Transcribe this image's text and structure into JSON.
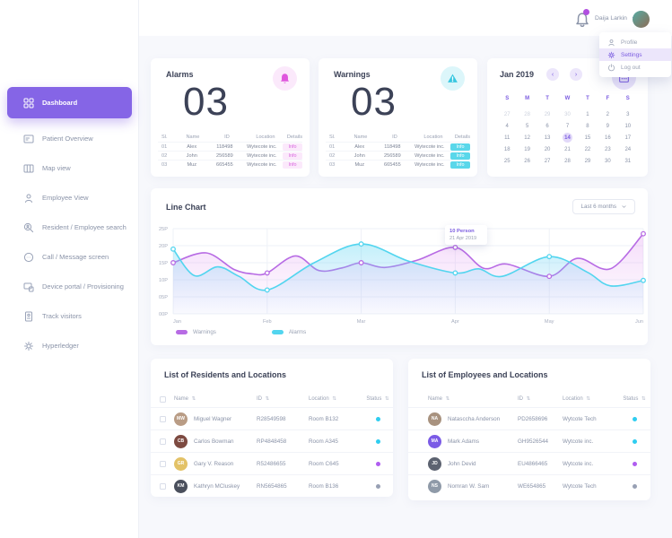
{
  "header": {
    "user_name": "Daija Larkin",
    "menu_items": [
      {
        "label": "Profile",
        "icon": "profile-icon",
        "active": false
      },
      {
        "label": "Settings",
        "icon": "settings-icon",
        "active": true
      },
      {
        "label": "Log out",
        "icon": "logout-icon",
        "active": false
      }
    ]
  },
  "sidebar": {
    "items": [
      {
        "label": "Dashboard",
        "icon": "grid-icon",
        "active": true
      },
      {
        "label": "Patient Overview",
        "icon": "card-list-icon",
        "active": false
      },
      {
        "label": "Map view",
        "icon": "map-icon",
        "active": false
      },
      {
        "label": "Employee View",
        "icon": "person-icon",
        "active": false
      },
      {
        "label": "Resident / Employee search",
        "icon": "search-person-icon",
        "active": false
      },
      {
        "label": "Call / Message screen",
        "icon": "call-message-icon",
        "active": false
      },
      {
        "label": "Device portal / Provisioning",
        "icon": "devices-icon",
        "active": false
      },
      {
        "label": "Track visitors",
        "icon": "badge-icon",
        "active": false
      },
      {
        "label": "Hyperledger",
        "icon": "gear-icon",
        "active": false
      }
    ]
  },
  "alarms_card": {
    "title": "Alarms",
    "count": "03",
    "icon": "bell-icon",
    "table": {
      "headers": [
        "Sl.",
        "Name",
        "ID",
        "Location",
        "Details"
      ],
      "rows": [
        [
          "01",
          "Alex",
          "118498",
          "Wytecote inc.",
          "Info"
        ],
        [
          "02",
          "John",
          "256589",
          "Wytecote inc.",
          "Info"
        ],
        [
          "03",
          "Muz",
          "665455",
          "Wytecote inc.",
          "Info"
        ]
      ]
    }
  },
  "warnings_card": {
    "title": "Warnings",
    "count": "03",
    "icon": "warning-icon",
    "table": {
      "headers": [
        "Sl.",
        "Name",
        "ID",
        "Location",
        "Details"
      ],
      "rows": [
        [
          "01",
          "Alex",
          "118498",
          "Wytecote inc.",
          "Info"
        ],
        [
          "02",
          "John",
          "256589",
          "Wytecote inc.",
          "Info"
        ],
        [
          "03",
          "Muz",
          "665455",
          "Wytecote inc.",
          "Info"
        ]
      ]
    }
  },
  "calendar_card": {
    "title": "Jan 2019",
    "day_headers": [
      "S",
      "M",
      "T",
      "W",
      "T",
      "F",
      "S"
    ],
    "cells": [
      {
        "t": "27",
        "muted": true
      },
      {
        "t": "28",
        "muted": true
      },
      {
        "t": "29",
        "muted": true
      },
      {
        "t": "30",
        "muted": true
      },
      {
        "t": "1"
      },
      {
        "t": "2"
      },
      {
        "t": "3"
      },
      {
        "t": "4"
      },
      {
        "t": "5"
      },
      {
        "t": "6"
      },
      {
        "t": "7"
      },
      {
        "t": "8"
      },
      {
        "t": "9"
      },
      {
        "t": "10"
      },
      {
        "t": "11"
      },
      {
        "t": "12"
      },
      {
        "t": "13"
      },
      {
        "t": "14",
        "selected": true
      },
      {
        "t": "15"
      },
      {
        "t": "16"
      },
      {
        "t": "17"
      },
      {
        "t": "18"
      },
      {
        "t": "19"
      },
      {
        "t": "20"
      },
      {
        "t": "21"
      },
      {
        "t": "22"
      },
      {
        "t": "23"
      },
      {
        "t": "24"
      },
      {
        "t": "25"
      },
      {
        "t": "26"
      },
      {
        "t": "27"
      },
      {
        "t": "28"
      },
      {
        "t": "29"
      },
      {
        "t": "30"
      },
      {
        "t": "31"
      }
    ]
  },
  "chart_card": {
    "title": "Line Chart",
    "range_label": "Last 6 months",
    "tooltip": {
      "line1": "10 Person",
      "line2": "21 Apr 2019"
    }
  },
  "chart_data": {
    "type": "line",
    "categories": [
      "Jan",
      "Feb",
      "Mar",
      "Apr",
      "May",
      "Jun"
    ],
    "y_ticks": [
      "00P",
      "05P",
      "10P",
      "15P",
      "20P",
      "25P"
    ],
    "ylim": [
      0,
      25
    ],
    "grid": true,
    "legend_position": "bottom-left",
    "series": [
      {
        "name": "Warnings",
        "color": "#b76be4",
        "fill_from": "rgba(224,150,240,0.32)",
        "fill_to": "rgba(224,150,240,0.02)",
        "values": [
          15,
          12,
          15,
          19.5,
          11,
          23.5
        ],
        "waypoints": [
          [
            0,
            15
          ],
          [
            0.07,
            17.9
          ],
          [
            0.13,
            13
          ],
          [
            0.17,
            11.7
          ],
          [
            0.2,
            12
          ],
          [
            0.26,
            17
          ],
          [
            0.31,
            12.7
          ],
          [
            0.36,
            13.5
          ],
          [
            0.4,
            15
          ],
          [
            0.45,
            13.6
          ],
          [
            0.52,
            15.8
          ],
          [
            0.6,
            19.5
          ],
          [
            0.66,
            13.4
          ],
          [
            0.71,
            14.6
          ],
          [
            0.8,
            11
          ],
          [
            0.86,
            16.3
          ],
          [
            0.93,
            13.2
          ],
          [
            1,
            23.5
          ]
        ]
      },
      {
        "name": "Alarms",
        "color": "#52d5ef",
        "fill_from": "rgba(96,218,242,0.38)",
        "fill_to": "rgba(150,190,250,0.05)",
        "values": [
          19,
          7,
          20.5,
          12,
          16.8,
          9.8
        ],
        "waypoints": [
          [
            0,
            19
          ],
          [
            0.045,
            11.2
          ],
          [
            0.095,
            13.8
          ],
          [
            0.14,
            11
          ],
          [
            0.2,
            7
          ],
          [
            0.3,
            15
          ],
          [
            0.4,
            20.5
          ],
          [
            0.5,
            15.5
          ],
          [
            0.6,
            12
          ],
          [
            0.65,
            13.2
          ],
          [
            0.7,
            11
          ],
          [
            0.8,
            16.8
          ],
          [
            0.88,
            12.3
          ],
          [
            0.93,
            8.2
          ],
          [
            1,
            9.8
          ]
        ]
      }
    ]
  },
  "residents_card": {
    "title": "List of Residents and Locations",
    "headers": [
      "Name",
      "ID",
      "Location",
      "Status"
    ],
    "rows": [
      {
        "name": "Miguel Wagner",
        "id": "R28549598",
        "location": "Room B132",
        "initials": "MW",
        "avatar_bg": "#b99c85",
        "status_color": "#2fcdf0"
      },
      {
        "name": "Carlos Bowman",
        "id": "RP4848458",
        "location": "Room A345",
        "initials": "CB",
        "avatar_bg": "#7d4a41",
        "status_color": "#2fcdf0"
      },
      {
        "name": "Gary V. Reason",
        "id": "R52486655",
        "location": "Room C645",
        "initials": "GR",
        "avatar_bg": "#e3c267",
        "status_color": "#b05df0"
      },
      {
        "name": "Kathryn MCluskey",
        "id": "RN5654865",
        "location": "Room B136",
        "initials": "KM",
        "avatar_bg": "#4a4f5c",
        "status_color": "#98a0b4"
      }
    ]
  },
  "employees_card": {
    "title": "List of Employees and Locations",
    "headers": [
      "Name",
      "ID",
      "Location",
      "Status"
    ],
    "rows": [
      {
        "name": "Natasccha Anderson",
        "id": "PD2658696",
        "location": "Wytcote Tech",
        "initials": "NA",
        "avatar_bg": "#a8927f",
        "status_color": "#2fcdf0"
      },
      {
        "name": "Mark Adams",
        "id": "GH9526544",
        "location": "Wytcote inc.",
        "initials": "MA",
        "avatar_bg": "#7b5be6",
        "status_color": "#2fcdf0"
      },
      {
        "name": "John Devid",
        "id": "EU4866465",
        "location": "Wytcote inc.",
        "initials": "JD",
        "avatar_bg": "#5c6270",
        "status_color": "#b05df0"
      },
      {
        "name": "Nomran W. Sam",
        "id": "WE654865",
        "location": "Wytcote Tech",
        "initials": "NS",
        "avatar_bg": "#8f9aa8",
        "status_color": "#98a0b4"
      }
    ]
  }
}
